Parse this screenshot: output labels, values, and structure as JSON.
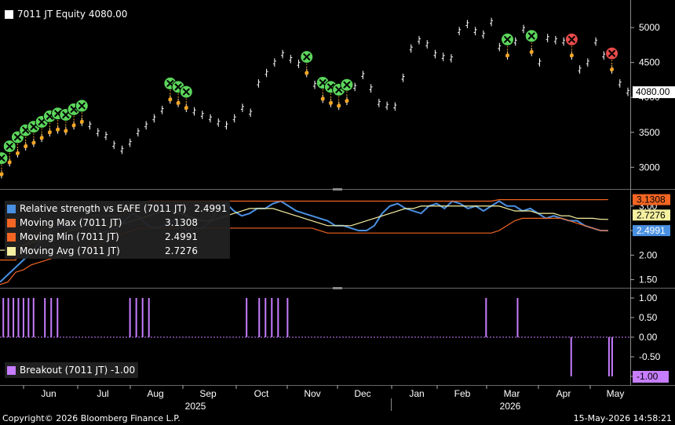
{
  "chart_data": {
    "type": "line",
    "ticker": "7011 JT",
    "x_labels": [
      "Jun",
      "Jul",
      "Aug",
      "Sep",
      "Oct",
      "Nov",
      "Dec",
      "Jan",
      "Feb",
      "Mar",
      "Apr",
      "May"
    ],
    "years": [
      "2025",
      "2026"
    ],
    "panels": [
      {
        "id": "price",
        "legend": [
          {
            "name": "7011 JT Equity",
            "value": "4080.00",
            "color": "#ffffff"
          }
        ],
        "yticks": [
          3000,
          3500,
          4000,
          4500,
          5000
        ],
        "ylim": [
          2700,
          5350
        ],
        "last_label": "4080.00",
        "series": [
          {
            "name": "7011 JT Equity",
            "values": [
              2900,
              3070,
              3200,
              3300,
              3350,
              3420,
              3500,
              3540,
              3520,
              3600,
              3650,
              3600,
              3500,
              3450,
              3320,
              3250,
              3350,
              3500,
              3600,
              3700,
              3820,
              3970,
              3920,
              3850,
              3800,
              3750,
              3700,
              3640,
              3600,
              3700,
              3850,
              3780,
              4200,
              4350,
              4500,
              4620,
              4550,
              4480,
              4350,
              4180,
              3980,
              3920,
              3880,
              3950,
              4150,
              4320,
              4130,
              3920,
              3880,
              3870,
              4280,
              4700,
              4820,
              4760,
              4620,
              4580,
              4560,
              4950,
              5050,
              4950,
              4900,
              5080,
              4720,
              4600,
              4800,
              4980,
              4650,
              4500,
              4850,
              4820,
              4800,
              4600,
              4400,
              4500,
              4800,
              4600,
              4400,
              4200,
              4080
            ]
          }
        ],
        "signals": [
          {
            "type": "buy",
            "index": [
              0,
              1,
              2,
              3,
              4,
              5,
              6,
              7,
              8,
              9,
              10
            ]
          },
          {
            "type": "buy",
            "index": [
              21,
              22,
              23,
              38,
              40,
              41,
              42,
              43,
              63,
              66
            ]
          },
          {
            "type": "sell",
            "index": [
              71,
              76
            ]
          }
        ]
      },
      {
        "id": "relative-strength",
        "legend": [
          {
            "name": "Relative strength vs EAFE (7011 JT)",
            "value": "2.4991",
            "color": "#4a90e2"
          },
          {
            "name": "Moving Max (7011 JT)",
            "value": "3.1308",
            "color": "#f26522"
          },
          {
            "name": "Moving Min (7011 JT)",
            "value": "2.4991",
            "color": "#f26522"
          },
          {
            "name": "Moving Avg (7011 JT)",
            "value": "2.7276",
            "color": "#f5f0a0"
          }
        ],
        "yticks": [
          1.5,
          2.0,
          2.5,
          3.0
        ],
        "ylim": [
          1.35,
          3.3
        ],
        "labels": [
          {
            "text": "3.1308",
            "bg": "#f26522",
            "color": "#000000"
          },
          {
            "text": "2.7276",
            "bg": "#f5f0a0",
            "color": "#000000"
          },
          {
            "text": "2.4991",
            "bg": "#4a90e2",
            "color": "#ffffff"
          }
        ],
        "series": [
          {
            "name": "Relative strength vs EAFE (7011 JT)",
            "values": [
              1.45,
              1.6,
              1.75,
              1.9,
              2.05,
              2.25,
              2.4,
              2.55,
              2.6,
              2.55,
              2.65,
              2.75,
              2.55,
              2.45,
              2.5,
              2.55,
              2.7,
              2.85,
              2.75,
              2.6,
              2.55,
              2.6,
              2.7,
              2.6,
              2.5,
              2.55,
              2.55,
              2.7,
              2.95,
              3.05,
              2.9,
              2.8,
              2.85,
              2.95,
              2.95,
              3.05,
              3.1,
              3.0,
              2.9,
              2.85,
              2.8,
              2.75,
              2.7,
              2.6,
              2.6,
              2.55,
              2.5,
              2.5,
              2.6,
              2.85,
              3.0,
              3.05,
              2.95,
              2.9,
              2.85,
              3.0,
              3.05,
              2.95,
              3.1,
              3.05,
              2.95,
              3.0,
              2.9,
              3.0,
              3.1,
              3.0,
              3.0,
              2.9,
              2.95,
              2.85,
              2.75,
              2.8,
              2.75,
              2.7,
              2.7,
              2.6,
              2.55,
              2.5,
              2.4991
            ]
          },
          {
            "name": "Moving Max (7011 JT)",
            "values": [
              1.9,
              1.9,
              1.9,
              2.2,
              2.3,
              2.45,
              2.6,
              2.65,
              2.65,
              2.65,
              2.7,
              2.8,
              2.8,
              2.8,
              2.8,
              2.8,
              2.85,
              2.95,
              3.05,
              3.1,
              3.1,
              3.1,
              3.1,
              3.1,
              3.1,
              3.1,
              3.1,
              3.1,
              3.1,
              3.1,
              3.1,
              3.1,
              3.1,
              3.1,
              3.1,
              3.1,
              3.1,
              3.1,
              3.1,
              3.1,
              3.1,
              3.1,
              3.1,
              3.1,
              3.1,
              3.1,
              3.1,
              3.1,
              3.1,
              3.1,
              3.1,
              3.1,
              3.1,
              3.1,
              3.1,
              3.1,
              3.1,
              3.1,
              3.1,
              3.1,
              3.1,
              3.1,
              3.1,
              3.1,
              3.13,
              3.13,
              3.13,
              3.13,
              3.13,
              3.13,
              3.13,
              3.13,
              3.13,
              3.13,
              3.13,
              3.13,
              3.13,
              3.13,
              3.1308
            ]
          },
          {
            "name": "Moving Min (7011 JT)",
            "values": [
              1.4,
              1.45,
              1.65,
              1.7,
              1.8,
              1.85,
              1.9,
              1.95,
              2.0,
              2.05,
              2.1,
              2.15,
              2.2,
              2.25,
              2.3,
              2.4,
              2.45,
              2.5,
              2.55,
              2.55,
              2.55,
              2.55,
              2.55,
              2.55,
              2.55,
              2.55,
              2.55,
              2.55,
              2.55,
              2.55,
              2.55,
              2.55,
              2.55,
              2.55,
              2.55,
              2.55,
              2.55,
              2.55,
              2.55,
              2.55,
              2.55,
              2.5,
              2.45,
              2.45,
              2.45,
              2.45,
              2.45,
              2.45,
              2.45,
              2.45,
              2.45,
              2.45,
              2.45,
              2.45,
              2.45,
              2.45,
              2.45,
              2.45,
              2.45,
              2.45,
              2.45,
              2.45,
              2.45,
              2.45,
              2.5,
              2.6,
              2.7,
              2.75,
              2.75,
              2.75,
              2.75,
              2.75,
              2.75,
              2.7,
              2.65,
              2.6,
              2.55,
              2.5,
              2.4991
            ]
          },
          {
            "name": "Moving Avg (7011 JT)",
            "values": [
              2.1,
              2.1,
              2.15,
              2.2,
              2.25,
              2.3,
              2.35,
              2.4,
              2.45,
              2.5,
              2.55,
              2.6,
              2.6,
              2.6,
              2.6,
              2.6,
              2.65,
              2.7,
              2.75,
              2.8,
              2.85,
              2.9,
              2.9,
              2.85,
              2.8,
              2.75,
              2.7,
              2.7,
              2.75,
              2.8,
              2.85,
              2.9,
              2.95,
              2.95,
              2.95,
              2.95,
              2.9,
              2.85,
              2.8,
              2.75,
              2.7,
              2.65,
              2.6,
              2.6,
              2.6,
              2.6,
              2.65,
              2.7,
              2.75,
              2.8,
              2.85,
              2.9,
              2.95,
              2.95,
              3.0,
              3.0,
              3.0,
              3.0,
              3.0,
              3.0,
              3.0,
              3.0,
              3.0,
              3.0,
              3.0,
              2.95,
              2.9,
              2.9,
              2.9,
              2.85,
              2.85,
              2.85,
              2.8,
              2.8,
              2.75,
              2.75,
              2.75,
              2.73,
              2.7276
            ]
          }
        ]
      },
      {
        "id": "breakout",
        "legend": [
          {
            "name": "Breakout (7011 JT)",
            "value": "-1.00",
            "color": "#c77dff"
          }
        ],
        "yticks": [
          -1.0,
          -0.5,
          0.0,
          0.5,
          1.0
        ],
        "ylim": [
          -1.2,
          1.2
        ],
        "last_label": "-1.00",
        "bars": [
          {
            "x": 0.004,
            "value": 1
          },
          {
            "x": 0.012,
            "value": 1
          },
          {
            "x": 0.02,
            "value": 1
          },
          {
            "x": 0.028,
            "value": 1
          },
          {
            "x": 0.036,
            "value": 1
          },
          {
            "x": 0.044,
            "value": 1
          },
          {
            "x": 0.052,
            "value": 1
          },
          {
            "x": 0.07,
            "value": 1
          },
          {
            "x": 0.08,
            "value": 1
          },
          {
            "x": 0.09,
            "value": 1
          },
          {
            "x": 0.205,
            "value": 1
          },
          {
            "x": 0.215,
            "value": 1
          },
          {
            "x": 0.225,
            "value": 1
          },
          {
            "x": 0.235,
            "value": 1
          },
          {
            "x": 0.39,
            "value": 1
          },
          {
            "x": 0.41,
            "value": 1
          },
          {
            "x": 0.42,
            "value": 1
          },
          {
            "x": 0.43,
            "value": 1
          },
          {
            "x": 0.44,
            "value": 1
          },
          {
            "x": 0.455,
            "value": 1
          },
          {
            "x": 0.77,
            "value": 1
          },
          {
            "x": 0.82,
            "value": 1
          },
          {
            "x": 0.905,
            "value": -1
          },
          {
            "x": 0.965,
            "value": -1
          },
          {
            "x": 0.97,
            "value": -1
          }
        ]
      }
    ]
  },
  "footer": {
    "copyright": "Copyright© 2026 Bloomberg Finance L.P.",
    "timestamp": "15-May-2026 14:58:21"
  }
}
